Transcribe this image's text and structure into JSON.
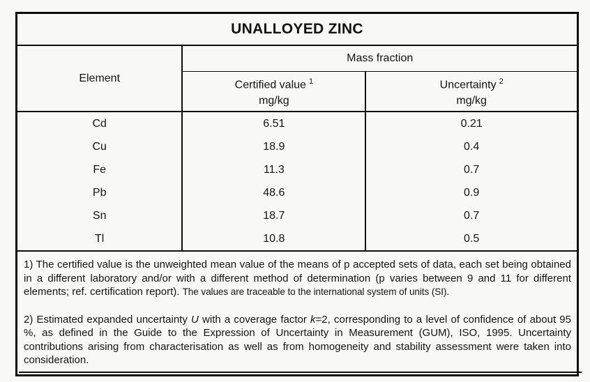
{
  "title": "UNALLOYED ZINC",
  "table": {
    "element_header": "Element",
    "mass_fraction_header": "Mass fraction",
    "certified_header": "Certified value",
    "certified_sup": "1",
    "uncertainty_header": "Uncertainty",
    "uncertainty_sup": "2",
    "certified_unit": "mg/kg",
    "uncertainty_unit": "mg/kg",
    "rows": [
      {
        "element": "Cd",
        "certified": "6.51",
        "uncertainty": "0.21"
      },
      {
        "element": "Cu",
        "certified": "18.9",
        "uncertainty": "0.4"
      },
      {
        "element": "Fe",
        "certified": "11.3",
        "uncertainty": "0.7"
      },
      {
        "element": "Pb",
        "certified": "48.6",
        "uncertainty": "0.9"
      },
      {
        "element": "Sn",
        "certified": "18.7",
        "uncertainty": "0.7"
      },
      {
        "element": "Tl",
        "certified": "10.8",
        "uncertainty": "0.5"
      }
    ]
  },
  "footnotes": {
    "note1_main": "1) The certified value is the unweighted mean value of the means of p accepted sets of data, each set being obtained in a different laboratory and/or with a different method of determination (p varies between 9 and 11 for different elements; ref. certification report).",
    "note1_condensed": "The values are traceable to the international system of units (SI).",
    "note2_part1": "2) Estimated expanded uncertainty ",
    "note2_italic1": "U",
    "note2_part2": " with a coverage factor ",
    "note2_italic2": "k",
    "note2_part3": "=2, corresponding to a level of confidence of about 95 %, as defined in the Guide to the Expression of Uncertainty in Measurement (GUM), ISO, 1995. Uncertainty contributions arising from characterisation as well as from homogeneity and stability assessment were taken into consideration."
  }
}
